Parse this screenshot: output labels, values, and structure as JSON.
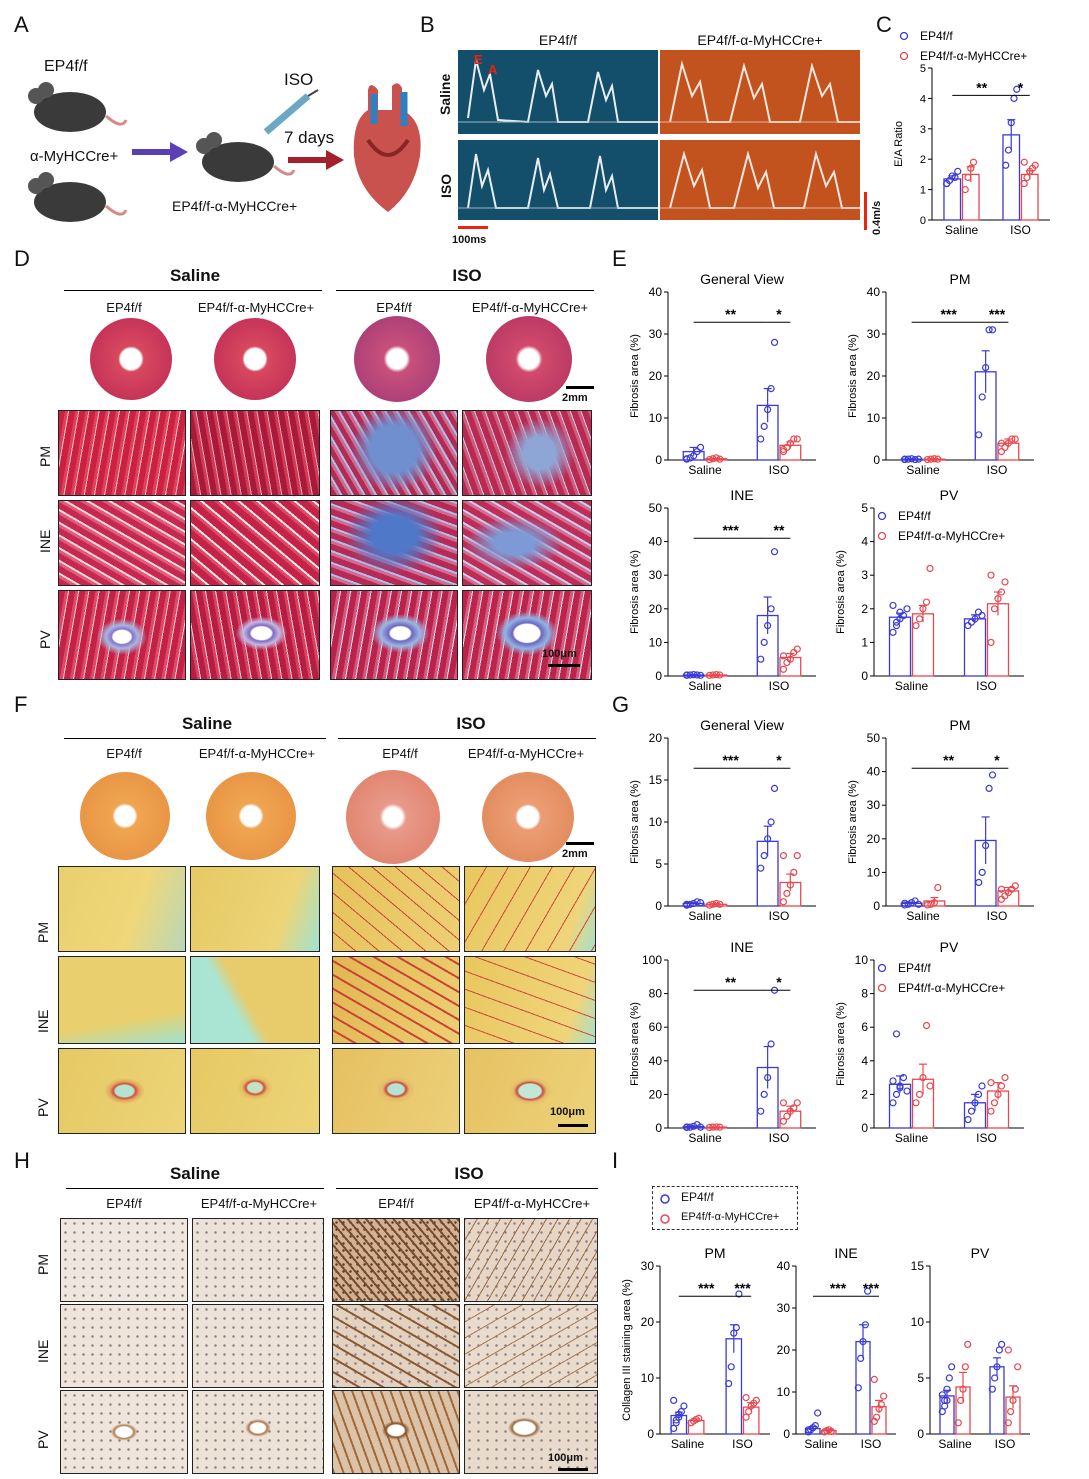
{
  "panels": {
    "A": "A",
    "B": "B",
    "C": "C",
    "D": "D",
    "E": "E",
    "F": "F",
    "G": "G",
    "H": "H",
    "I": "I"
  },
  "schematic": {
    "mouse1": "EP4f/f",
    "mouse2": "α-MyHCCre+",
    "mouse3": "EP4f/f-α-MyHCCre+",
    "iso": "ISO",
    "days": "7 days"
  },
  "doppler": {
    "col1": "EP4f/f",
    "col2": "EP4f/f-α-MyHCCre+",
    "row1": "Saline",
    "row2": "ISO",
    "E": "E",
    "A": "A",
    "timebar": "100ms",
    "velbar": "0.4m/s"
  },
  "histology": {
    "saline": "Saline",
    "iso": "ISO",
    "g1": "EP4f/f",
    "g2": "EP4f/f-α-MyHCCre+",
    "rows": [
      "PM",
      "INE",
      "PV"
    ],
    "scale_section": "2mm",
    "scale_tile": "100μm"
  },
  "legend": {
    "g1": "EP4f/f",
    "g2": "EP4f/f-α-MyHCCre+"
  },
  "chart_data": [
    {
      "id": "C",
      "type": "bar",
      "title": "",
      "ylabel": "E/A Ratio",
      "ylim": [
        0,
        5
      ],
      "yticks": [
        0,
        1,
        2,
        3,
        4,
        5
      ],
      "categories": [
        "Saline",
        "ISO"
      ],
      "series": [
        {
          "name": "EP4f/f",
          "values": [
            1.35,
            2.8
          ],
          "err": [
            0.1,
            0.5
          ],
          "points": [
            [
              1.2,
              1.3,
              1.45,
              1.4,
              1.6,
              1.2
            ],
            [
              1.8,
              2.3,
              3.2,
              4.0,
              4.3
            ]
          ]
        },
        {
          "name": "EP4f/f-α-MyHCCre+",
          "values": [
            1.5,
            1.5
          ],
          "err": [
            0.25,
            0.12
          ],
          "points": [
            [
              1.0,
              1.4,
              1.7,
              1.9
            ],
            [
              1.2,
              1.4,
              1.6,
              1.7,
              1.8,
              1.9
            ]
          ]
        }
      ],
      "sig": [
        {
          "label": "**",
          "from": 0,
          "to": 2
        },
        {
          "label": "*",
          "from": 2,
          "to": 3
        }
      ]
    },
    {
      "id": "E1",
      "type": "bar",
      "title": "General View",
      "ylabel": "Fibrosis area (%)",
      "ylim": [
        0,
        40
      ],
      "yticks": [
        0,
        10,
        20,
        30,
        40
      ],
      "categories": [
        "Saline",
        "ISO"
      ],
      "series": [
        {
          "name": "EP4f/f",
          "values": [
            2.0,
            13.0
          ],
          "err": [
            1.0,
            4.0
          ],
          "points": [
            [
              0.2,
              0.5,
              1,
              2,
              3,
              0.3
            ],
            [
              5,
              8,
              12,
              17,
              28
            ]
          ]
        },
        {
          "name": "EP4f/f-α-MyHCCre+",
          "values": [
            0.3,
            3.5
          ],
          "err": [
            0.1,
            0.8
          ],
          "points": [
            [
              0.1,
              0.3,
              0.5,
              0.2
            ],
            [
              2,
              3,
              4,
              5,
              5,
              2.5
            ]
          ]
        }
      ],
      "sig": [
        {
          "label": "**",
          "from": 0,
          "to": 2
        },
        {
          "label": "*",
          "from": 2,
          "to": 3
        }
      ]
    },
    {
      "id": "E2",
      "type": "bar",
      "title": "PM",
      "ylabel": "Fibrosis area (%)",
      "ylim": [
        0,
        40
      ],
      "yticks": [
        0,
        10,
        20,
        30,
        40
      ],
      "categories": [
        "Saline",
        "ISO"
      ],
      "series": [
        {
          "name": "EP4f/f",
          "values": [
            0.2,
            21.0
          ],
          "err": [
            0.1,
            5.0
          ],
          "points": [
            [
              0.1,
              0.2,
              0.3,
              0.1,
              0.2,
              0.2
            ],
            [
              6,
              15,
              22,
              31,
              31
            ]
          ]
        },
        {
          "name": "EP4f/f-α-MyHCCre+",
          "values": [
            0.2,
            4.0
          ],
          "err": [
            0.1,
            1.0
          ],
          "points": [
            [
              0.1,
              0.2,
              0.3,
              0.2
            ],
            [
              2,
              3,
              4,
              5,
              5,
              4
            ]
          ]
        }
      ],
      "sig": [
        {
          "label": "***",
          "from": 0,
          "to": 2
        },
        {
          "label": "***",
          "from": 2,
          "to": 3
        }
      ]
    },
    {
      "id": "E3",
      "type": "bar",
      "title": "INE",
      "ylabel": "Fibrosis area (%)",
      "ylim": [
        0,
        50
      ],
      "yticks": [
        0,
        10,
        20,
        30,
        40,
        50
      ],
      "categories": [
        "Saline",
        "ISO"
      ],
      "series": [
        {
          "name": "EP4f/f",
          "values": [
            0.3,
            18.0
          ],
          "err": [
            0.1,
            5.5
          ],
          "points": [
            [
              0.2,
              0.3,
              0.4,
              0.3,
              0.2,
              0.3
            ],
            [
              5,
              10,
              15,
              20,
              37
            ]
          ]
        },
        {
          "name": "EP4f/f-α-MyHCCre+",
          "values": [
            0.3,
            5.5
          ],
          "err": [
            0.1,
            1.2
          ],
          "points": [
            [
              0.2,
              0.3,
              0.4,
              0.3
            ],
            [
              2,
              4,
              5,
              7,
              8,
              6
            ]
          ]
        }
      ],
      "sig": [
        {
          "label": "***",
          "from": 0,
          "to": 2
        },
        {
          "label": "**",
          "from": 2,
          "to": 3
        }
      ]
    },
    {
      "id": "E4",
      "type": "bar",
      "title": "PV",
      "ylabel": "Fibrosis area (%)",
      "ylim": [
        0,
        5
      ],
      "yticks": [
        0,
        1,
        2,
        3,
        4,
        5
      ],
      "categories": [
        "Saline",
        "ISO"
      ],
      "series": [
        {
          "name": "EP4f/f",
          "values": [
            1.75,
            1.7
          ],
          "err": [
            0.12,
            0.12
          ],
          "points": [
            [
              1.3,
              1.5,
              1.7,
              1.8,
              2.0,
              2.1,
              1.6,
              1.9
            ],
            [
              1.5,
              1.6,
              1.7,
              1.9,
              1.8
            ]
          ]
        },
        {
          "name": "EP4f/f-α-MyHCCre+",
          "values": [
            1.85,
            2.15
          ],
          "err": [
            0.25,
            0.35
          ],
          "points": [
            [
              1.5,
              1.7,
              2.0,
              2.2,
              3.2
            ],
            [
              1.0,
              2.0,
              2.3,
              2.5,
              2.8,
              3.0
            ]
          ]
        }
      ],
      "sig": []
    },
    {
      "id": "G1",
      "type": "bar",
      "title": "General View",
      "ylabel": "Fibrosis area (%)",
      "ylim": [
        0,
        20
      ],
      "yticks": [
        0,
        5,
        10,
        15,
        20
      ],
      "categories": [
        "Saline",
        "ISO"
      ],
      "series": [
        {
          "name": "EP4f/f",
          "values": [
            0.3,
            7.7
          ],
          "err": [
            0.1,
            1.8
          ],
          "points": [
            [
              0.1,
              0.2,
              0.3,
              0.5,
              0.4,
              0.2
            ],
            [
              4.5,
              6,
              8,
              10,
              14
            ]
          ]
        },
        {
          "name": "EP4f/f-α-MyHCCre+",
          "values": [
            0.2,
            2.8
          ],
          "err": [
            0.1,
            1.0
          ],
          "points": [
            [
              0.1,
              0.2,
              0.3,
              0.2
            ],
            [
              0.5,
              1.5,
              2.5,
              4,
              6,
              6
            ]
          ]
        }
      ],
      "sig": [
        {
          "label": "***",
          "from": 0,
          "to": 2
        },
        {
          "label": "*",
          "from": 2,
          "to": 3
        }
      ]
    },
    {
      "id": "G2",
      "type": "bar",
      "title": "PM",
      "ylabel": "Fibrosis area (%)",
      "ylim": [
        0,
        50
      ],
      "yticks": [
        0,
        10,
        20,
        30,
        40,
        50
      ],
      "categories": [
        "Saline",
        "ISO"
      ],
      "series": [
        {
          "name": "EP4f/f",
          "values": [
            0.8,
            19.5
          ],
          "err": [
            0.3,
            7.0
          ],
          "points": [
            [
              0.3,
              0.5,
              1.0,
              1.5,
              0.5,
              0.8
            ],
            [
              7,
              10,
              18,
              35,
              39
            ]
          ]
        },
        {
          "name": "EP4f/f-α-MyHCCre+",
          "values": [
            1.5,
            4.5
          ],
          "err": [
            1.0,
            1.0
          ],
          "points": [
            [
              0.3,
              0.5,
              1.0,
              5.5
            ],
            [
              2,
              3,
              4,
              5,
              6,
              5
            ]
          ]
        }
      ],
      "sig": [
        {
          "label": "**",
          "from": 0,
          "to": 2
        },
        {
          "label": "*",
          "from": 2,
          "to": 3
        }
      ]
    },
    {
      "id": "G3",
      "type": "bar",
      "title": "INE",
      "ylabel": "Fibrosis area (%)",
      "ylim": [
        0,
        100
      ],
      "yticks": [
        0,
        20,
        40,
        60,
        80,
        100
      ],
      "categories": [
        "Saline",
        "ISO"
      ],
      "series": [
        {
          "name": "EP4f/f",
          "values": [
            0.8,
            36.0
          ],
          "err": [
            0.4,
            12.5
          ],
          "points": [
            [
              0.3,
              0.5,
              1.0,
              2.0,
              0.5,
              0.6
            ],
            [
              10,
              20,
              30,
              50,
              82
            ]
          ]
        },
        {
          "name": "EP4f/f-α-MyHCCre+",
          "values": [
            0.5,
            10.0
          ],
          "err": [
            0.1,
            3.0
          ],
          "points": [
            [
              0.3,
              0.5,
              0.6,
              0.5
            ],
            [
              4,
              7,
              10,
              12,
              15,
              15
            ]
          ]
        }
      ],
      "sig": [
        {
          "label": "**",
          "from": 0,
          "to": 2
        },
        {
          "label": "*",
          "from": 2,
          "to": 3
        }
      ]
    },
    {
      "id": "G4",
      "type": "bar",
      "title": "PV",
      "ylabel": "Fibrosis area (%)",
      "ylim": [
        0,
        10
      ],
      "yticks": [
        0,
        2,
        4,
        6,
        8,
        10
      ],
      "categories": [
        "Saline",
        "ISO"
      ],
      "series": [
        {
          "name": "EP4f/f",
          "values": [
            2.6,
            1.5
          ],
          "err": [
            0.5,
            0.5
          ],
          "points": [
            [
              1.5,
              2.0,
              2.5,
              3.0,
              2.2,
              2.8,
              5.6,
              2.4
            ],
            [
              0.5,
              1.0,
              1.5,
              2.0,
              2.5
            ]
          ]
        },
        {
          "name": "EP4f/f-α-MyHCCre+",
          "values": [
            2.9,
            2.2
          ],
          "err": [
            0.9,
            0.5
          ],
          "points": [
            [
              1.5,
              2.0,
              3.0,
              6.1,
              2.5
            ],
            [
              1.0,
              1.5,
              2.0,
              2.5,
              3.0,
              2.7
            ]
          ]
        }
      ],
      "sig": []
    },
    {
      "id": "I1",
      "type": "bar",
      "title": "PM",
      "ylabel": "Collagen III staining area (%)",
      "ylim": [
        0,
        30
      ],
      "yticks": [
        0,
        10,
        20,
        30
      ],
      "categories": [
        "Saline",
        "ISO"
      ],
      "series": [
        {
          "name": "EP4f/f",
          "values": [
            3.3,
            17.0
          ],
          "err": [
            0.6,
            2.5
          ],
          "points": [
            [
              1,
              2,
              3,
              4,
              5,
              6,
              2.5,
              3.5
            ],
            [
              9,
              12,
              18,
              19,
              25
            ]
          ]
        },
        {
          "name": "EP4f/f-α-MyHCCre+",
          "values": [
            2.4,
            4.8
          ],
          "err": [
            0.3,
            0.8
          ],
          "points": [
            [
              2.0,
              2.3,
              2.6,
              2.8
            ],
            [
              3,
              4,
              5,
              5.5,
              6,
              6.5
            ]
          ]
        }
      ],
      "sig": [
        {
          "label": "***",
          "from": 0,
          "to": 2
        },
        {
          "label": "***",
          "from": 2,
          "to": 3
        }
      ]
    },
    {
      "id": "I2",
      "type": "bar",
      "title": "INE",
      "ylabel": "",
      "ylim": [
        0,
        40
      ],
      "yticks": [
        0,
        10,
        20,
        30,
        40
      ],
      "categories": [
        "Saline",
        "ISO"
      ],
      "series": [
        {
          "name": "EP4f/f",
          "values": [
            1.3,
            22.0
          ],
          "err": [
            0.5,
            4.0
          ],
          "points": [
            [
              0.5,
              1,
              1.5,
              2,
              5,
              1
            ],
            [
              11,
              18,
              22,
              26,
              34
            ]
          ]
        },
        {
          "name": "EP4f/f-α-MyHCCre+",
          "values": [
            0.8,
            6.5
          ],
          "err": [
            0.3,
            1.5
          ],
          "points": [
            [
              0.5,
              0.8,
              1.0,
              0.6
            ],
            [
              3,
              4,
              6,
              7,
              9,
              13
            ]
          ]
        }
      ],
      "sig": [
        {
          "label": "***",
          "from": 0,
          "to": 2
        },
        {
          "label": "***",
          "from": 2,
          "to": 3
        }
      ]
    },
    {
      "id": "I3",
      "type": "bar",
      "title": "PV",
      "ylabel": "",
      "ylim": [
        0,
        15
      ],
      "yticks": [
        0,
        5,
        10,
        15
      ],
      "categories": [
        "Saline",
        "ISO"
      ],
      "series": [
        {
          "name": "EP4f/f",
          "values": [
            3.4,
            6.0
          ],
          "err": [
            0.5,
            0.8
          ],
          "points": [
            [
              2,
              3,
              4,
              5,
              6,
              3.5,
              2.5,
              3
            ],
            [
              4,
              5,
              6,
              7.5,
              8
            ]
          ]
        },
        {
          "name": "EP4f/f-α-MyHCCre+",
          "values": [
            4.2,
            3.3
          ],
          "err": [
            1.3,
            1.0
          ],
          "points": [
            [
              1,
              3,
              4,
              6,
              8
            ],
            [
              1,
              2,
              3,
              4,
              6,
              7.5
            ]
          ]
        }
      ],
      "sig": []
    }
  ],
  "colors": {
    "blue": "#3a3ad6",
    "red": "#e8484f",
    "dopplerA": "#134e6a",
    "dopplerB": "#c2531f"
  }
}
